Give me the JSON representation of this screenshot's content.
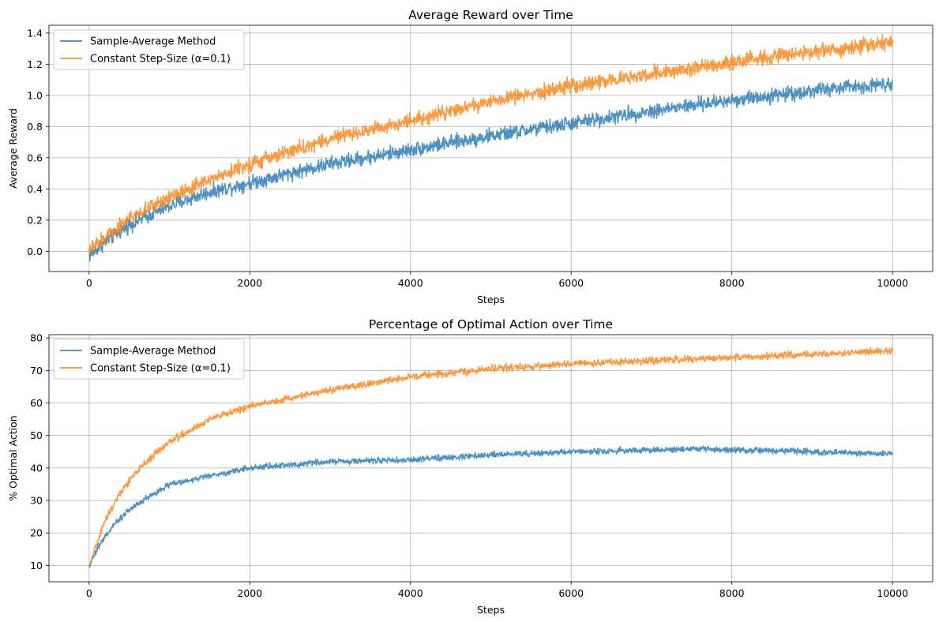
{
  "chart_data": [
    {
      "type": "line",
      "title": "Average Reward over Time",
      "xlabel": "Steps",
      "ylabel": "Average Reward",
      "xlim": [
        -500,
        10500
      ],
      "ylim": [
        -0.13,
        1.45
      ],
      "xticks": [
        0,
        2000,
        4000,
        6000,
        8000,
        10000
      ],
      "yticks": [
        0.0,
        0.2,
        0.4,
        0.6,
        0.8,
        1.0,
        1.2,
        1.4
      ],
      "ytick_decimals": 1,
      "grid": true,
      "legend_placement": "upper-left",
      "series": [
        {
          "name": "Sample-Average Method",
          "color": "#1f77b4",
          "noise": 0.03,
          "x": [
            0,
            200,
            500,
            1000,
            1500,
            2000,
            3000,
            4000,
            5000,
            6000,
            7000,
            8000,
            9000,
            10000
          ],
          "y": [
            -0.03,
            0.06,
            0.17,
            0.29,
            0.38,
            0.44,
            0.56,
            0.65,
            0.74,
            0.82,
            0.9,
            0.97,
            1.03,
            1.08
          ]
        },
        {
          "name": "Constant Step-Size (α=0.1)",
          "color": "#ff7f0e",
          "noise": 0.03,
          "x": [
            0,
            200,
            500,
            1000,
            1500,
            2000,
            3000,
            4000,
            5000,
            6000,
            7000,
            8000,
            9000,
            10000
          ],
          "y": [
            0.0,
            0.09,
            0.21,
            0.35,
            0.46,
            0.56,
            0.72,
            0.84,
            0.96,
            1.06,
            1.14,
            1.21,
            1.28,
            1.34
          ]
        }
      ]
    },
    {
      "type": "line",
      "title": "Percentage of Optimal Action over Time",
      "xlabel": "Steps",
      "ylabel": "% Optimal Action",
      "xlim": [
        -500,
        10500
      ],
      "ylim": [
        5,
        81
      ],
      "xticks": [
        0,
        2000,
        4000,
        6000,
        8000,
        10000
      ],
      "yticks": [
        10,
        20,
        30,
        40,
        50,
        60,
        70,
        80
      ],
      "ytick_decimals": 0,
      "grid": true,
      "legend_placement": "upper-left",
      "series": [
        {
          "name": "Sample-Average Method",
          "color": "#1f77b4",
          "noise": 0.6,
          "x": [
            0,
            100,
            200,
            400,
            600,
            800,
            1000,
            1500,
            2000,
            3000,
            4000,
            5000,
            6000,
            7000,
            7500,
            8000,
            9000,
            10000
          ],
          "y": [
            10,
            15,
            19,
            25,
            29,
            32,
            35,
            37.5,
            40,
            42,
            42.5,
            44,
            45,
            45.5,
            46,
            45.5,
            45,
            44.5
          ]
        },
        {
          "name": "Constant Step-Size (α=0.1)",
          "color": "#ff7f0e",
          "noise": 0.7,
          "x": [
            0,
            100,
            200,
            400,
            600,
            800,
            1000,
            1500,
            2000,
            3000,
            4000,
            5000,
            6000,
            7000,
            8000,
            9000,
            10000
          ],
          "y": [
            9,
            17,
            24,
            33,
            39,
            44,
            48,
            55,
            59,
            64,
            68,
            70.5,
            72,
            73,
            74,
            75,
            76
          ]
        }
      ]
    }
  ]
}
